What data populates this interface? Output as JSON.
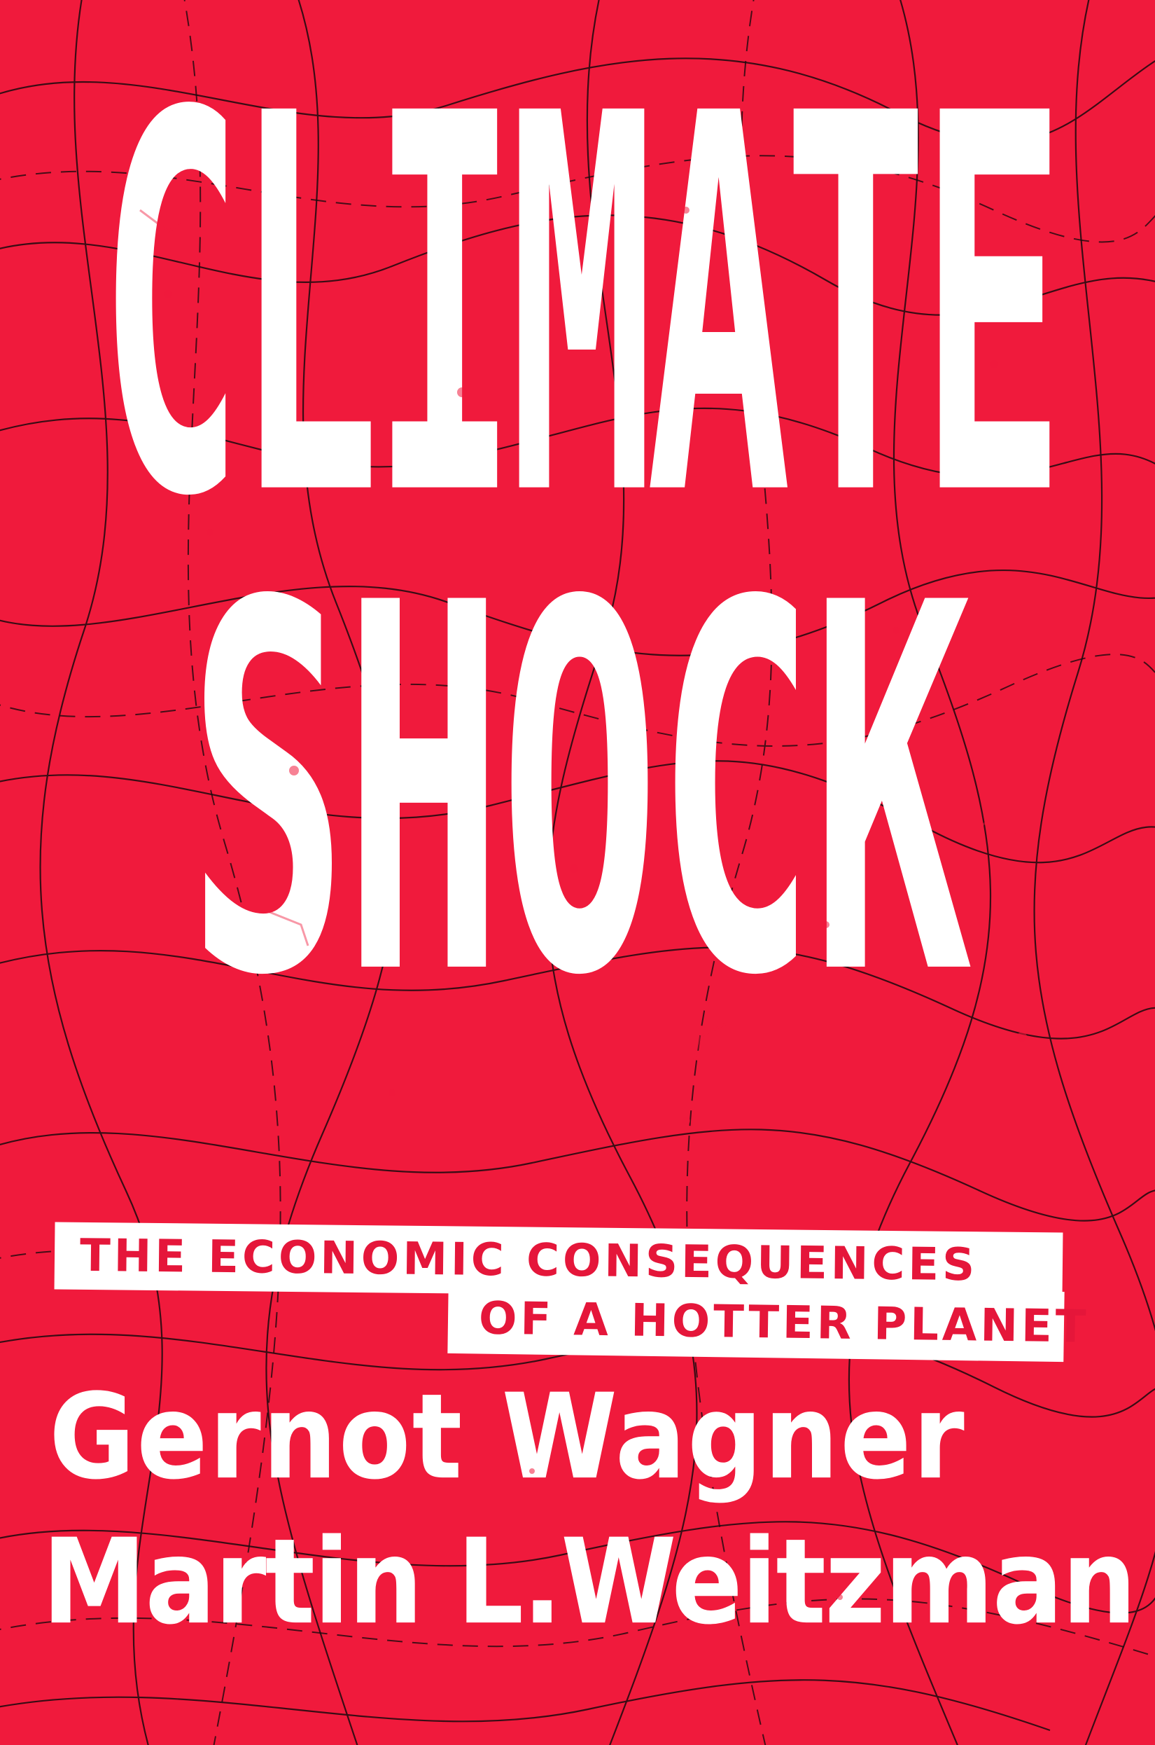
{
  "cover": {
    "background_color": "#f01a3c",
    "text_color": "#ffffff",
    "strip_text_color": "#e5163a",
    "contour_line_color": "#1a0a0e"
  },
  "title": {
    "line1": "CLIMATE",
    "line2": "SHOCK"
  },
  "subtitle": {
    "line1": "THE ECONOMIC CONSEQUENCES",
    "line2": "OF A HOTTER PLANET"
  },
  "authors": [
    "Gernot Wagner",
    "Martin L.Weitzman"
  ]
}
